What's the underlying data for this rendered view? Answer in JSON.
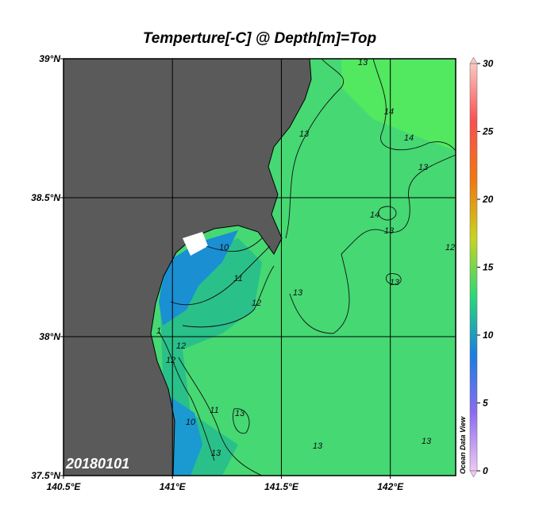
{
  "map": {
    "title": "Temperture[-C] @ Depth[m]=Top",
    "lon_range": [
      140.5,
      142.3
    ],
    "lat_range": [
      37.5,
      39
    ],
    "lon_ticks": [
      {
        "value": 140.5,
        "label": "140.5°E"
      },
      {
        "value": 141,
        "label": "141°E"
      },
      {
        "value": 141.5,
        "label": "141.5°E"
      },
      {
        "value": 142,
        "label": "142°E"
      }
    ],
    "lat_ticks": [
      {
        "value": 37.5,
        "label": "37.5°N"
      },
      {
        "value": 38,
        "label": "38°N"
      },
      {
        "value": 38.5,
        "label": "38.5°N"
      },
      {
        "value": 39,
        "label": "39°N"
      }
    ],
    "grid": true,
    "colorbar": {
      "range": [
        0,
        30
      ],
      "ticks": [
        0,
        5,
        10,
        15,
        20,
        25,
        30
      ],
      "colors": [
        "#f0c8f4",
        "#8a6cf0",
        "#1a7ee0",
        "#2ad878",
        "#c8d420",
        "#f07810",
        "#f85050",
        "#f8c8c0"
      ]
    },
    "date_label": "20180101",
    "credit": "Ocean Data View",
    "contour_labels": [
      13,
      14,
      13,
      14,
      13,
      14,
      13,
      12,
      10,
      11,
      12,
      13,
      13,
      1,
      12,
      12,
      11,
      10,
      13,
      13,
      13,
      13
    ]
  }
}
